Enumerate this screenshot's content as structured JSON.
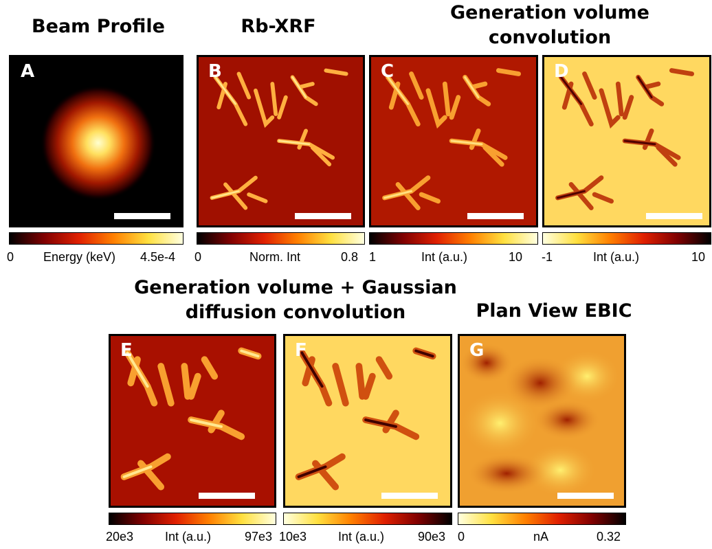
{
  "titles": {
    "beam_profile": "Beam Profile",
    "rb_xrf": "Rb-XRF",
    "gen_volume_line1": "Generation volume",
    "gen_volume_line2": "convolution",
    "gen_gauss_line1": "Generation volume + Gaussian",
    "gen_gauss_line2": "diffusion convolution",
    "plan_view": "Plan View EBIC"
  },
  "panels": [
    {
      "id": "A",
      "label": "A",
      "colormap": "hot",
      "cbar": {
        "min": "0",
        "max": "4.5e-4",
        "unit": "Energy (keV)"
      }
    },
    {
      "id": "B",
      "label": "B",
      "colormap": "hot",
      "cbar": {
        "min": "0",
        "max": "0.8",
        "unit": "Norm. Int"
      }
    },
    {
      "id": "C",
      "label": "C",
      "colormap": "hot",
      "cbar": {
        "min": "1",
        "max": "10",
        "unit": "Int (a.u.)"
      }
    },
    {
      "id": "D",
      "label": "D",
      "colormap": "hot-inverted",
      "cbar": {
        "min": "-1",
        "max": "10",
        "unit": "Int (a.u.)"
      }
    },
    {
      "id": "E",
      "label": "E",
      "colormap": "hot",
      "cbar": {
        "min": "20e3",
        "max": "97e3",
        "unit": "Int (a.u.)"
      }
    },
    {
      "id": "F",
      "label": "F",
      "colormap": "hot-inverted",
      "cbar": {
        "min": "10e3",
        "max": "90e3",
        "unit": "Int (a.u.)"
      }
    },
    {
      "id": "G",
      "label": "G",
      "colormap": "hot-inverted",
      "cbar": {
        "min": "0",
        "max": "0.32",
        "unit": "nA"
      }
    }
  ],
  "colors": {
    "hot_dark": "#140000",
    "hot_bg": "#a81000",
    "hot_mid": "#e85010",
    "hot_bright": "#ffe070",
    "inv_bg": "#ffd860",
    "inv_mid": "#e06010",
    "inv_dark": "#700000",
    "scalebar": "#ffffff"
  }
}
